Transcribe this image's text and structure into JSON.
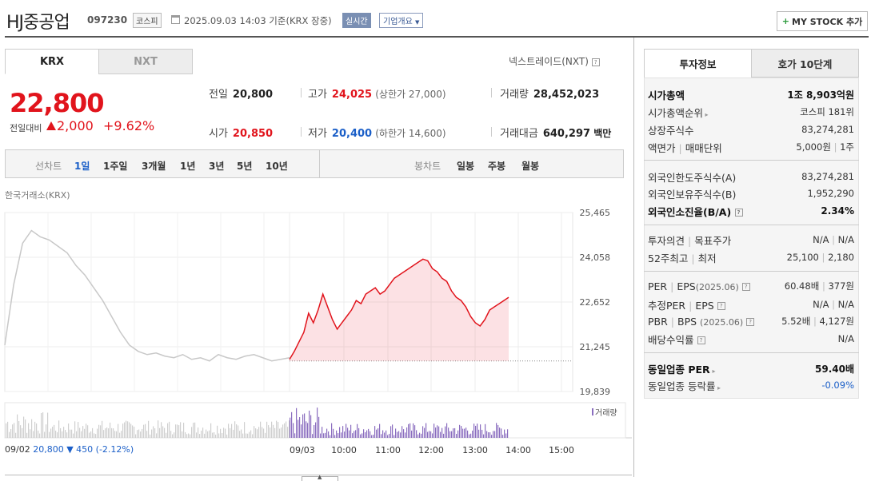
{
  "header": {
    "name": "HJ중공업",
    "code": "097230",
    "market_badge": "코스피",
    "datetime": "2025.09.03 14:03 기준(KRX 장중)",
    "live_badge": "실시간",
    "overview_badge": "기업개요",
    "mystock_label": "MY STOCK 추가"
  },
  "tabs": {
    "krx": "KRX",
    "nxt": "NXT"
  },
  "nxt_link": "넥스트레이드(NXT)",
  "price": {
    "current": "22,800",
    "change_label": "전일대비",
    "change": "2,000",
    "change_pct": "+9.62%"
  },
  "stats": {
    "prev_label": "전일",
    "prev": "20,800",
    "high_label": "고가",
    "high": "24,025",
    "upper_limit": "(상한가 27,000)",
    "volume_label": "거래량",
    "volume": "28,452,023",
    "open_label": "시가",
    "open": "20,850",
    "low_label": "저가",
    "low": "20,400",
    "lower_limit": "(하한가 14,600)",
    "amount_label": "거래대금",
    "amount": "640,297",
    "amount_unit": "백만"
  },
  "period_bar": {
    "line_label": "선차트",
    "line_items": [
      "1일",
      "1주일",
      "3개월",
      "1년",
      "3년",
      "5년",
      "10년"
    ],
    "candle_label": "봉차트",
    "candle_items": [
      "일봉",
      "주봉",
      "월봉"
    ]
  },
  "chart_data": {
    "type": "line",
    "exchange_label": "한국거래소(KRX)",
    "y_ticks": [
      "25,465",
      "24,058",
      "22,652",
      "21,245",
      "19,839"
    ],
    "ylim": [
      19839,
      25465
    ],
    "x_ticks": [
      "09/03",
      "10:00",
      "11:00",
      "12:00",
      "13:00",
      "14:00",
      "15:00"
    ],
    "volume_legend": "거래량",
    "prev_day": {
      "date": "09/02",
      "close": "20,800",
      "change": "▼ 450",
      "change_pct": "(-2.12%)"
    },
    "prev_close": 20800,
    "series": [
      {
        "values": [
          21300,
          23200,
          24500,
          24900,
          24700,
          24600,
          24400,
          24200,
          23800,
          23500,
          23100,
          22700,
          22200,
          21700,
          21300,
          21100,
          21000,
          21050,
          20950,
          20900,
          21000,
          20850,
          20900,
          20800,
          21000,
          20900,
          20850,
          20950,
          21000,
          20900,
          20800,
          20850,
          20900
        ]
      },
      {
        "values": [
          20850,
          21100,
          21400,
          21700,
          22300,
          22000,
          22400,
          22900,
          22500,
          22100,
          21800,
          22000,
          22200,
          22400,
          22700,
          22600,
          22900,
          23000,
          23100,
          22900,
          23000,
          23200,
          23400,
          23500,
          23600,
          23700,
          23800,
          23900,
          24000,
          23950,
          23700,
          23600,
          23400,
          23300,
          23000,
          22800,
          22700,
          22500,
          22200,
          22000,
          21900,
          22100,
          22400,
          22500,
          22600,
          22700,
          22800
        ]
      }
    ]
  },
  "right_tabs": {
    "info": "투자정보",
    "orderbook": "호가 10단계"
  },
  "info": {
    "market_cap": {
      "k": "시가총액",
      "v": "1조 8,903억원"
    },
    "cap_rank": {
      "k": "시가총액순위",
      "v": "코스피 181위"
    },
    "listed_shares": {
      "k": "상장주식수",
      "v": "83,274,281"
    },
    "face_value": {
      "k": "액면가",
      "k2": "매매단위",
      "v": "5,000원",
      "v2": "1주"
    },
    "foreign_limit": {
      "k": "외국인한도주식수(A)",
      "v": "83,274,281"
    },
    "foreign_hold": {
      "k": "외국인보유주식수(B)",
      "v": "1,952,290"
    },
    "foreign_ratio": {
      "k": "외국인소진율(B/A)",
      "v": "2.34%"
    },
    "opinion": {
      "k": "투자의견",
      "k2": "목표주가",
      "v": "N/A",
      "v2": "N/A"
    },
    "week52": {
      "k": "52주최고",
      "k2": "최저",
      "v": "25,100",
      "v2": "2,180"
    },
    "per": {
      "k": "PER",
      "k2": "EPS",
      "yr": "(2025.06)",
      "v": "60.48배",
      "v2": "377원"
    },
    "est_per": {
      "k": "추정PER",
      "k2": "EPS",
      "v": "N/A",
      "v2": "N/A"
    },
    "pbr": {
      "k": "PBR",
      "k2": "BPS",
      "yr": "(2025.06)",
      "v": "5.52배",
      "v2": "4,127원"
    },
    "dividend": {
      "k": "배당수익률",
      "v": "N/A"
    },
    "sector_per": {
      "k": "동일업종 PER",
      "v": "59.40배"
    },
    "sector_chg": {
      "k": "동일업종 등락률",
      "v": "-0.09%"
    }
  },
  "colors": {
    "up": "#e1141c",
    "down": "#1b5fc8",
    "volume": "#8a6dbf"
  }
}
